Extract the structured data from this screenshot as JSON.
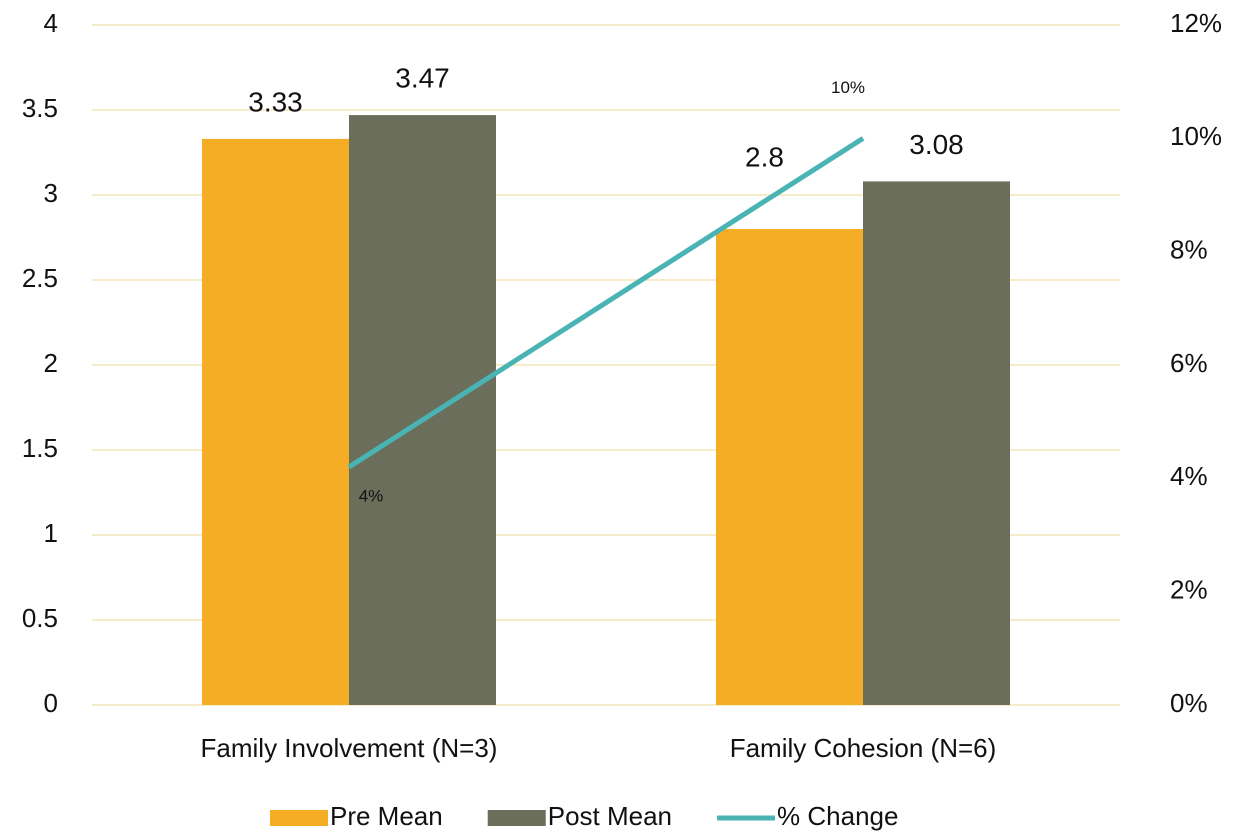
{
  "chart_data": {
    "type": "bar",
    "categories": [
      "Family Involvement (N=3)",
      "Family Cohesion (N=6)"
    ],
    "series": [
      {
        "name": "Pre Mean",
        "color": "#f5ad25",
        "values": [
          3.33,
          2.8
        ]
      },
      {
        "name": "Post Mean",
        "color": "#6a6e5b",
        "values": [
          3.47,
          3.08
        ]
      },
      {
        "name": "% Change",
        "type": "line",
        "axis": "y2",
        "color": "#4ab3b3",
        "values": [
          4.2,
          10.0
        ],
        "value_labels": [
          "4%",
          "10%"
        ]
      }
    ],
    "ylim": [
      0,
      4
    ],
    "yticks": [
      0,
      0.5,
      1,
      1.5,
      2,
      2.5,
      3,
      3.5,
      4
    ],
    "y2lim": [
      0,
      12
    ],
    "y2ticks": [
      {
        "value": 0,
        "label": "0%"
      },
      {
        "value": 2,
        "label": "2%"
      },
      {
        "value": 4,
        "label": "4%"
      },
      {
        "value": 6,
        "label": "6%"
      },
      {
        "value": 8,
        "label": "8%"
      },
      {
        "value": 10,
        "label": "10%"
      },
      {
        "value": 12,
        "label": "12%"
      }
    ],
    "grid": true,
    "legend": "bottom"
  }
}
